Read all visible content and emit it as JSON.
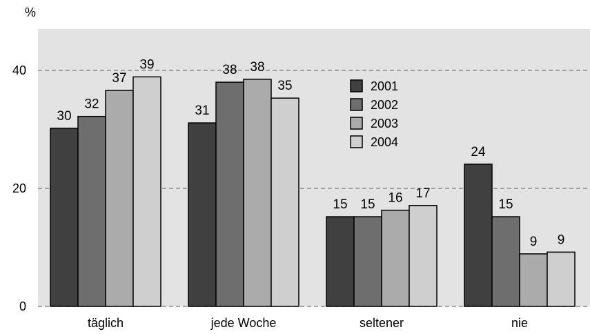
{
  "chart_data": {
    "type": "bar",
    "unit": "%",
    "categories": [
      "täglich",
      "jede Woche",
      "seltener",
      "nie"
    ],
    "series": [
      {
        "name": "2001",
        "color": "#404040",
        "values": [
          30,
          31,
          15,
          24
        ]
      },
      {
        "name": "2002",
        "color": "#6e6e6e",
        "values": [
          32,
          38,
          15,
          15
        ]
      },
      {
        "name": "2003",
        "color": "#ababab",
        "values": [
          37,
          38,
          16,
          9
        ]
      },
      {
        "name": "2004",
        "color": "#cfcfcf",
        "values": [
          39,
          35,
          17,
          9
        ]
      }
    ],
    "plotted_values": [
      [
        30.2,
        31.1,
        15.2,
        24.1
      ],
      [
        32.2,
        38.0,
        15.2,
        15.2
      ],
      [
        36.6,
        38.5,
        16.3,
        8.9
      ],
      [
        38.9,
        35.3,
        17.1,
        9.2
      ]
    ],
    "yticks": [
      "0",
      "20",
      "40"
    ],
    "ylim": [
      0,
      47
    ],
    "grid": true,
    "legend_position": "inside-center",
    "plot_background": "#e3e3e3"
  }
}
